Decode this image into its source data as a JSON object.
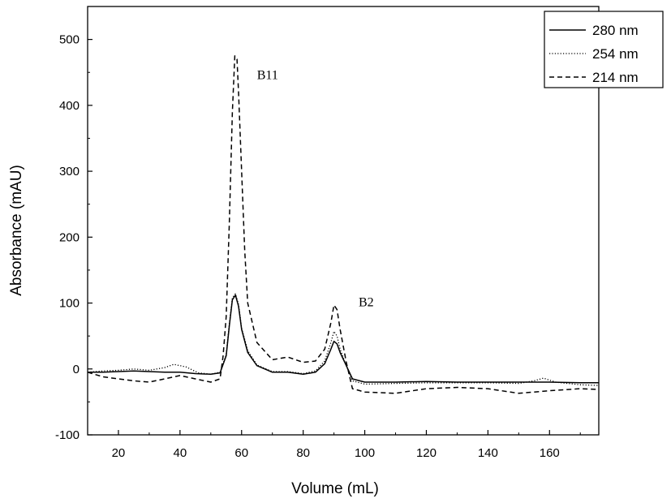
{
  "chart_data": {
    "type": "line",
    "xlabel": "Volume (mL)",
    "ylabel": "Absorbance (mAU)",
    "xlim": [
      10,
      176
    ],
    "ylim": [
      -100,
      550
    ],
    "xticks": [
      20,
      40,
      60,
      80,
      100,
      120,
      140,
      160
    ],
    "yticks": [
      -100,
      0,
      100,
      200,
      300,
      400,
      500
    ],
    "grid": false,
    "legend_position": "top-right",
    "annotations": [
      {
        "text": "B11",
        "x": 65,
        "y": 440
      },
      {
        "text": "B2",
        "x": 98,
        "y": 95
      }
    ],
    "series": [
      {
        "name": "280 nm",
        "style": "solid",
        "x": [
          10,
          15,
          20,
          25,
          30,
          35,
          40,
          45,
          50,
          53,
          55,
          56,
          57,
          58,
          59,
          60,
          62,
          65,
          70,
          75,
          80,
          84,
          87,
          89,
          90,
          91,
          92,
          94,
          96,
          100,
          110,
          120,
          130,
          140,
          150,
          160,
          170,
          176
        ],
        "y": [
          -5,
          -5,
          -4,
          -3,
          -4,
          -5,
          -5,
          -7,
          -8,
          -6,
          20,
          65,
          105,
          112,
          95,
          60,
          25,
          5,
          -5,
          -5,
          -8,
          -5,
          8,
          30,
          42,
          38,
          25,
          5,
          -15,
          -20,
          -20,
          -19,
          -20,
          -20,
          -20,
          -20,
          -21,
          -21
        ]
      },
      {
        "name": "254 nm",
        "style": "dotted",
        "x": [
          10,
          15,
          20,
          25,
          30,
          35,
          38,
          42,
          46,
          50,
          53,
          55,
          56,
          57,
          58,
          59,
          60,
          62,
          65,
          70,
          75,
          80,
          84,
          87,
          89,
          90,
          91,
          92,
          94,
          96,
          100,
          110,
          120,
          130,
          140,
          150,
          155,
          158,
          162,
          170,
          176
        ],
        "y": [
          -5,
          -3,
          -2,
          0,
          -2,
          2,
          7,
          3,
          -6,
          -8,
          -5,
          22,
          68,
          108,
          114,
          98,
          62,
          28,
          6,
          -4,
          -4,
          -7,
          -3,
          12,
          40,
          57,
          50,
          30,
          5,
          -18,
          -23,
          -22,
          -21,
          -21,
          -21,
          -22,
          -18,
          -14,
          -20,
          -24,
          -25
        ]
      },
      {
        "name": "214 nm",
        "style": "dashed",
        "x": [
          10,
          15,
          20,
          25,
          30,
          35,
          40,
          45,
          50,
          53,
          54,
          55,
          56,
          57,
          57.8,
          58.5,
          59,
          60,
          61,
          62,
          65,
          70,
          75,
          80,
          84,
          87,
          89,
          90,
          91,
          92,
          94,
          96,
          100,
          110,
          120,
          130,
          140,
          150,
          160,
          170,
          176
        ],
        "y": [
          -5,
          -12,
          -15,
          -18,
          -20,
          -15,
          -10,
          -15,
          -20,
          -15,
          20,
          80,
          220,
          390,
          475,
          470,
          420,
          300,
          180,
          100,
          40,
          14,
          18,
          10,
          12,
          30,
          70,
          97,
          90,
          60,
          10,
          -30,
          -35,
          -37,
          -30,
          -28,
          -30,
          -37,
          -33,
          -30,
          -31
        ]
      }
    ]
  }
}
